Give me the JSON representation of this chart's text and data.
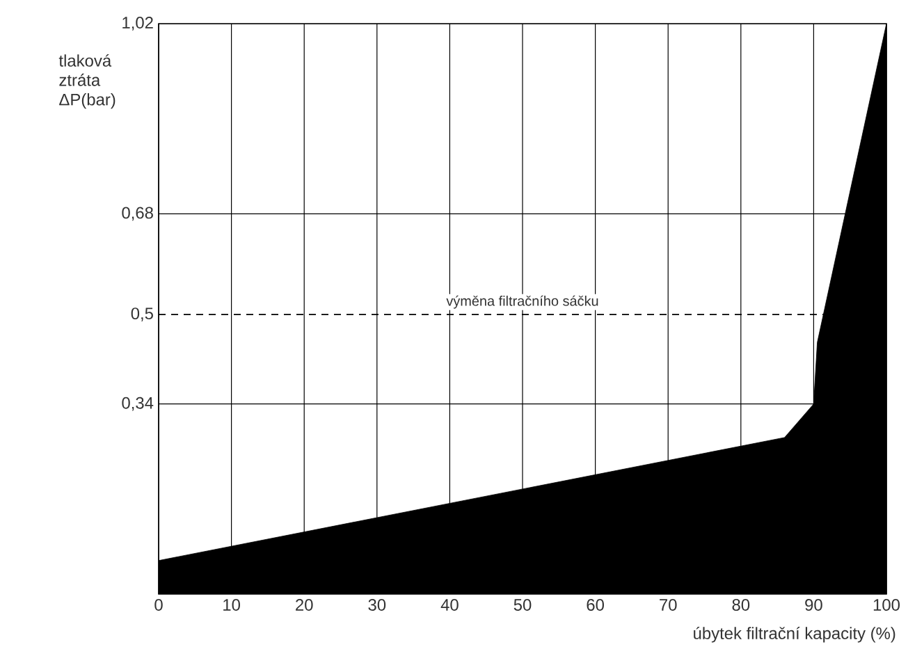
{
  "chart_data": {
    "type": "area",
    "xlabel": "úbytek filtrační kapacity (%)",
    "ylabel": "tlaková ztráta ΔP(bar)",
    "x": [
      0,
      86,
      90,
      90.5,
      100
    ],
    "series": [
      {
        "color": "#000000",
        "values": [
          0.06,
          0.28,
          0.34,
          0.45,
          1.02
        ]
      }
    ],
    "xlim": [
      0,
      100
    ],
    "xticks": [
      0,
      10,
      20,
      30,
      40,
      50,
      60,
      70,
      80,
      90,
      100
    ],
    "ylim": [
      0,
      1.02
    ],
    "yticks": [
      {
        "value": 0.34,
        "label": "0,34"
      },
      {
        "value": 0.5,
        "label": "0,5"
      },
      {
        "value": 0.68,
        "label": "0,68"
      },
      {
        "value": 1.02,
        "label": "1,02"
      }
    ],
    "ref_lines": [
      {
        "axis": "y",
        "value": 0.5,
        "label": "výměna filtračního sáčku",
        "line_style": "dashed"
      }
    ],
    "grid": true
  }
}
